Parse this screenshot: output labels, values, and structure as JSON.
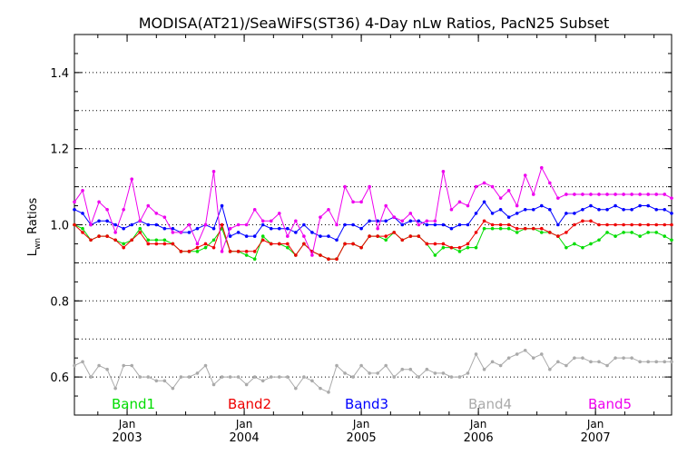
{
  "chart_data": {
    "type": "line",
    "title": "MODISA(AT21)/SeaWiFS(ST36) 4-Day nLw Ratios, PacN25 Subset",
    "ylabel_main": "L",
    "ylabel_sub": "wn",
    "ylabel_rest": " Ratios",
    "xlabel": "",
    "ylim": [
      0.5,
      1.5
    ],
    "xlim": [
      2002.55,
      2007.65
    ],
    "yticks": [
      0.6,
      0.8,
      1.0,
      1.2,
      1.4
    ],
    "ytick_labels": [
      "0.6",
      "0.8",
      "1.0",
      "1.2",
      "1.4"
    ],
    "grid_y": [
      0.6,
      0.7,
      0.8,
      0.9,
      1.0,
      1.1,
      1.2,
      1.3,
      1.4
    ],
    "xticks": [
      {
        "x": 2003.0,
        "month": "Jan",
        "year": "2003"
      },
      {
        "x": 2004.0,
        "month": "Jan",
        "year": "2004"
      },
      {
        "x": 2005.0,
        "month": "Jan",
        "year": "2005"
      },
      {
        "x": 2006.0,
        "month": "Jan",
        "year": "2006"
      },
      {
        "x": 2007.0,
        "month": "Jan",
        "year": "2007"
      }
    ],
    "x": [
      2002.55,
      2002.62,
      2002.69,
      2002.76,
      2002.83,
      2002.9,
      2002.97,
      2003.04,
      2003.11,
      2003.18,
      2003.25,
      2003.32,
      2003.39,
      2003.46,
      2003.53,
      2003.6,
      2003.67,
      2003.74,
      2003.81,
      2003.88,
      2003.95,
      2004.02,
      2004.09,
      2004.16,
      2004.23,
      2004.3,
      2004.37,
      2004.44,
      2004.51,
      2004.58,
      2004.65,
      2004.72,
      2004.79,
      2004.86,
      2004.93,
      2005.0,
      2005.07,
      2005.14,
      2005.21,
      2005.28,
      2005.35,
      2005.42,
      2005.49,
      2005.56,
      2005.63,
      2005.7,
      2005.77,
      2005.84,
      2005.91,
      2005.98,
      2006.05,
      2006.12,
      2006.19,
      2006.26,
      2006.33,
      2006.4,
      2006.47,
      2006.54,
      2006.61,
      2006.68,
      2006.75,
      2006.82,
      2006.89,
      2006.96,
      2007.03,
      2007.1,
      2007.17,
      2007.24,
      2007.31,
      2007.38,
      2007.45,
      2007.52,
      2007.59,
      2007.65
    ],
    "series": [
      {
        "name": "Band1",
        "color": "#00dd00",
        "values": [
          1.0,
          0.99,
          0.96,
          0.97,
          0.97,
          0.96,
          0.95,
          0.96,
          0.99,
          0.96,
          0.96,
          0.96,
          0.95,
          0.93,
          0.93,
          0.93,
          0.94,
          0.96,
          0.99,
          0.93,
          0.93,
          0.92,
          0.91,
          0.97,
          0.95,
          0.95,
          0.94,
          0.92,
          0.95,
          0.93,
          0.92,
          0.91,
          0.91,
          0.95,
          0.95,
          0.94,
          0.97,
          0.97,
          0.96,
          0.98,
          0.96,
          0.97,
          0.97,
          0.95,
          0.92,
          0.94,
          0.94,
          0.93,
          0.94,
          0.94,
          0.99,
          0.99,
          0.99,
          0.99,
          0.98,
          0.99,
          0.99,
          0.98,
          0.98,
          0.97,
          0.94,
          0.95,
          0.94,
          0.95,
          0.96,
          0.98,
          0.97,
          0.98,
          0.98,
          0.97,
          0.98,
          0.98,
          0.97,
          0.96
        ]
      },
      {
        "name": "Band2",
        "color": "#ee0000",
        "values": [
          1.0,
          0.98,
          0.96,
          0.97,
          0.97,
          0.96,
          0.94,
          0.96,
          0.98,
          0.95,
          0.95,
          0.95,
          0.95,
          0.93,
          0.93,
          0.94,
          0.95,
          0.94,
          1.0,
          0.93,
          0.93,
          0.93,
          0.93,
          0.96,
          0.95,
          0.95,
          0.95,
          0.92,
          0.95,
          0.93,
          0.92,
          0.91,
          0.91,
          0.95,
          0.95,
          0.94,
          0.97,
          0.97,
          0.97,
          0.98,
          0.96,
          0.97,
          0.97,
          0.95,
          0.95,
          0.95,
          0.94,
          0.94,
          0.95,
          0.98,
          1.01,
          1.0,
          1.0,
          1.0,
          0.99,
          0.99,
          0.99,
          0.99,
          0.98,
          0.97,
          0.98,
          1.0,
          1.01,
          1.01,
          1.0,
          1.0,
          1.0,
          1.0,
          1.0,
          1.0,
          1.0,
          1.0,
          1.0,
          1.0
        ]
      },
      {
        "name": "Band3",
        "color": "#0000ff",
        "values": [
          1.04,
          1.03,
          1.0,
          1.01,
          1.01,
          1.0,
          0.99,
          1.0,
          1.01,
          1.0,
          1.0,
          0.99,
          0.99,
          0.98,
          0.98,
          0.99,
          1.0,
          0.99,
          1.05,
          0.97,
          0.98,
          0.97,
          0.97,
          1.0,
          0.99,
          0.99,
          0.99,
          0.98,
          1.0,
          0.98,
          0.97,
          0.97,
          0.96,
          1.0,
          1.0,
          0.99,
          1.01,
          1.01,
          1.01,
          1.02,
          1.0,
          1.01,
          1.01,
          1.0,
          1.0,
          1.0,
          0.99,
          1.0,
          1.0,
          1.03,
          1.06,
          1.03,
          1.04,
          1.02,
          1.03,
          1.04,
          1.04,
          1.05,
          1.04,
          1.0,
          1.03,
          1.03,
          1.04,
          1.05,
          1.04,
          1.04,
          1.05,
          1.04,
          1.04,
          1.05,
          1.05,
          1.04,
          1.04,
          1.03
        ]
      },
      {
        "name": "Band4",
        "color": "#aaaaaa",
        "values": [
          0.63,
          0.64,
          0.6,
          0.63,
          0.62,
          0.57,
          0.63,
          0.63,
          0.6,
          0.6,
          0.59,
          0.59,
          0.57,
          0.6,
          0.6,
          0.61,
          0.63,
          0.58,
          0.6,
          0.6,
          0.6,
          0.58,
          0.6,
          0.59,
          0.6,
          0.6,
          0.6,
          0.57,
          0.6,
          0.59,
          0.57,
          0.56,
          0.63,
          0.61,
          0.6,
          0.63,
          0.61,
          0.61,
          0.63,
          0.6,
          0.62,
          0.62,
          0.6,
          0.62,
          0.61,
          0.61,
          0.6,
          0.6,
          0.61,
          0.66,
          0.62,
          0.64,
          0.63,
          0.65,
          0.66,
          0.67,
          0.65,
          0.66,
          0.62,
          0.64,
          0.63,
          0.65,
          0.65,
          0.64,
          0.64,
          0.63,
          0.65,
          0.65,
          0.65,
          0.64,
          0.64,
          0.64,
          0.64,
          0.64
        ]
      },
      {
        "name": "Band5",
        "color": "#ee00ee",
        "values": [
          1.06,
          1.09,
          1.0,
          1.06,
          1.04,
          0.98,
          1.04,
          1.12,
          1.01,
          1.05,
          1.03,
          1.02,
          0.98,
          0.98,
          1.0,
          0.95,
          1.0,
          1.14,
          0.93,
          0.99,
          1.0,
          1.0,
          1.04,
          1.01,
          1.01,
          1.03,
          0.97,
          1.01,
          0.97,
          0.92,
          1.02,
          1.04,
          1.0,
          1.1,
          1.06,
          1.06,
          1.1,
          0.99,
          1.05,
          1.02,
          1.01,
          1.03,
          1.0,
          1.01,
          1.01,
          1.14,
          1.04,
          1.06,
          1.05,
          1.1,
          1.11,
          1.1,
          1.07,
          1.09,
          1.05,
          1.13,
          1.08,
          1.15,
          1.11,
          1.07,
          1.08,
          1.08,
          1.08,
          1.08,
          1.08,
          1.08,
          1.08,
          1.08,
          1.08,
          1.08,
          1.08,
          1.08,
          1.08,
          1.07
        ]
      }
    ],
    "legend_placement": "bottom-inside"
  }
}
